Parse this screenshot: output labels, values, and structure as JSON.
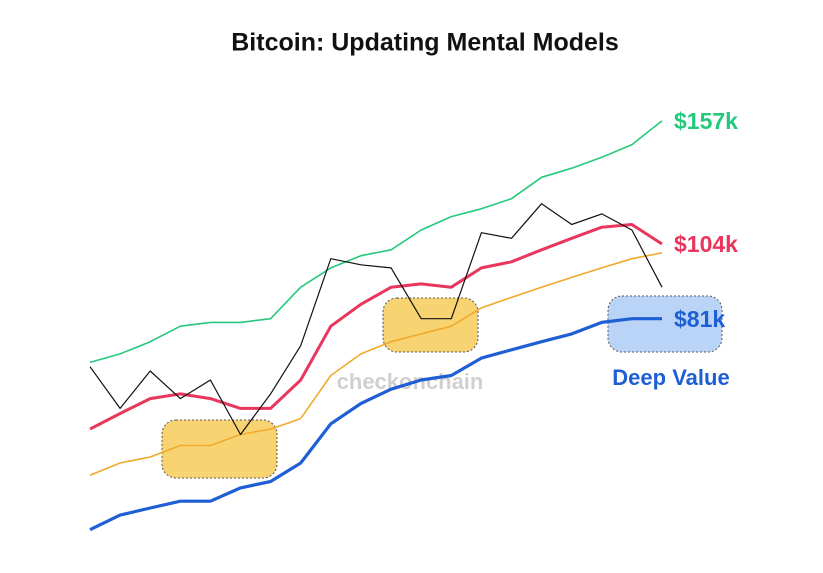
{
  "chart_data": {
    "type": "line",
    "title": "Bitcoin: Updating Mental Models",
    "log_scale": true,
    "ylim": [
      38,
      180
    ],
    "grid": false,
    "watermark": "checkonchain",
    "series": [
      {
        "color": "#25c97c",
        "width": 1.6,
        "end_label": "$157k",
        "values": [
          70,
          72,
          75,
          79,
          80,
          80,
          81,
          90,
          96,
          100,
          102,
          109,
          114,
          117,
          121,
          130,
          134,
          139,
          145,
          157
        ]
      },
      {
        "color": "#e8365d",
        "width": 3,
        "end_label": "$104k",
        "values": [
          56,
          59,
          62,
          63,
          62,
          60,
          60,
          66,
          79,
          85,
          90,
          91,
          90,
          96,
          98,
          102,
          106,
          110,
          111,
          104
        ]
      },
      {
        "color": "#f0aa2c",
        "width": 1.6,
        "values": [
          48,
          50,
          51,
          53,
          53,
          55,
          56,
          58,
          67,
          72,
          75,
          77,
          79,
          84,
          87,
          90,
          93,
          96,
          99,
          101
        ]
      },
      {
        "color": "#1f5fd6",
        "width": 3.2,
        "end_label": "$81k",
        "values": [
          40,
          42,
          43,
          44,
          44,
          46,
          47,
          50,
          57,
          61,
          64,
          66,
          67,
          71,
          73,
          75,
          77,
          80,
          81,
          81
        ]
      },
      {
        "color": "#111111",
        "width": 1.2,
        "values": [
          69,
          60,
          68,
          62,
          66,
          55,
          63,
          74,
          99,
          97,
          96,
          81,
          81,
          108,
          106,
          119,
          111,
          115,
          109,
          90
        ]
      }
    ],
    "annotation": "Deep Value"
  }
}
